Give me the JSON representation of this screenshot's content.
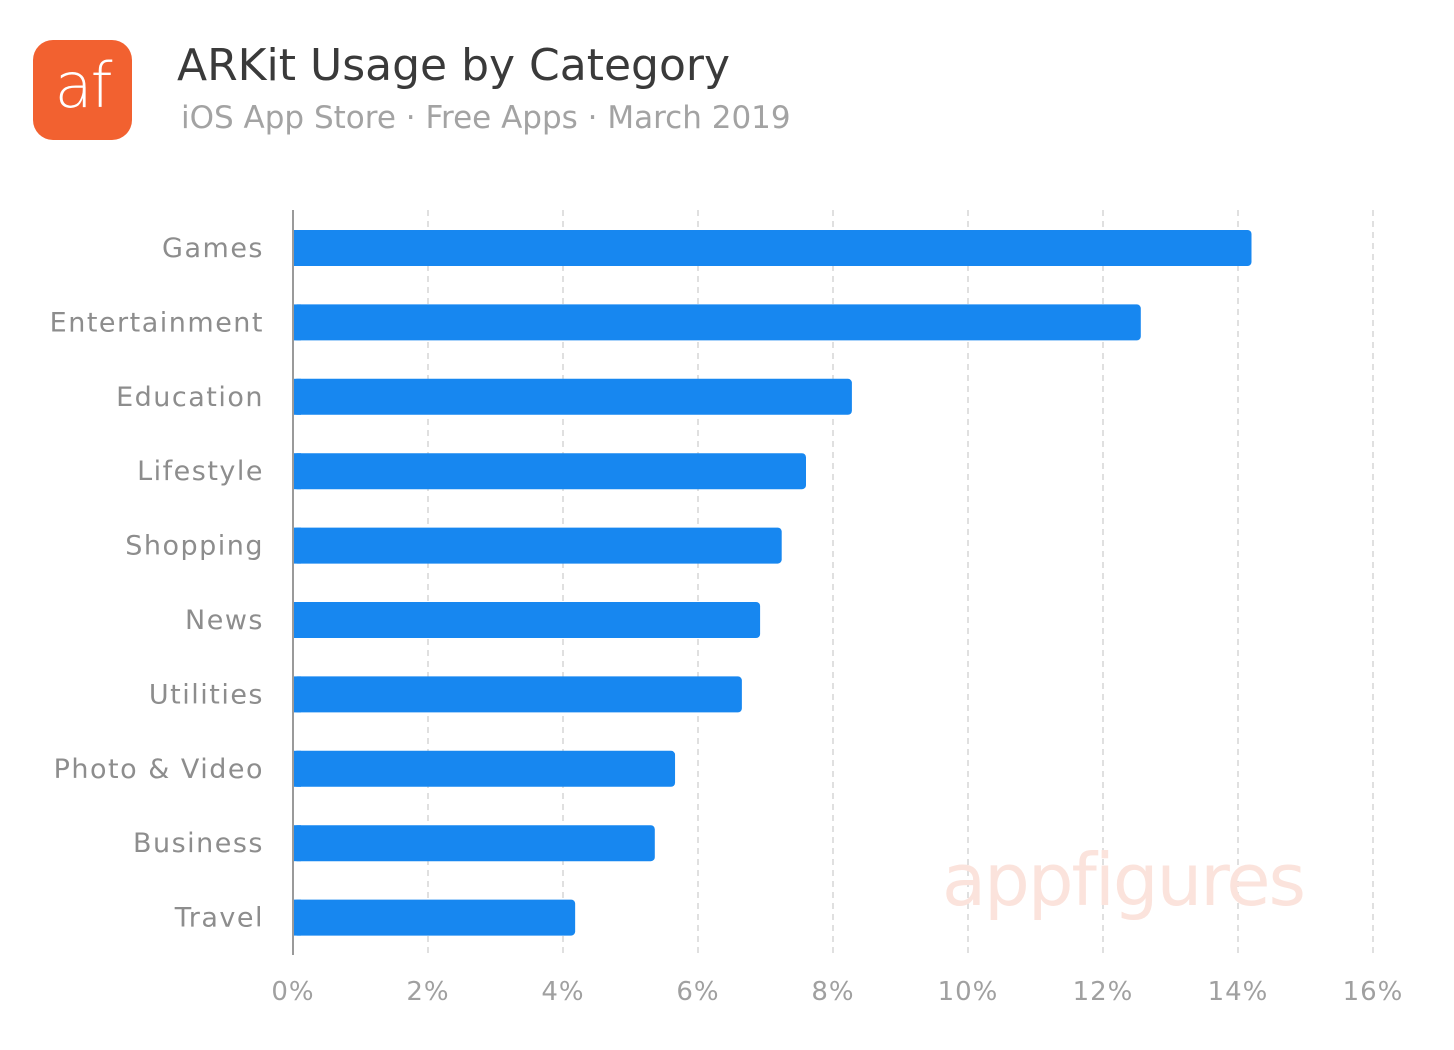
{
  "header": {
    "logo_text": "af",
    "title": "ARKit Usage by Category",
    "subtitle": "iOS App Store · Free Apps · March 2019"
  },
  "watermark": "appfigures",
  "colors": {
    "bar": "#1787f0",
    "logo_bg": "#f26130",
    "grid": "#d6d6d6",
    "axis": "#9a9a9a"
  },
  "chart_data": {
    "type": "bar",
    "orientation": "horizontal",
    "categories": [
      "Games",
      "Entertainment",
      "Education",
      "Lifestyle",
      "Shopping",
      "News",
      "Utilities",
      "Photo & Video",
      "Business",
      "Travel"
    ],
    "values": [
      14.2,
      12.56,
      8.28,
      7.6,
      7.24,
      6.92,
      6.65,
      5.66,
      5.36,
      4.18
    ],
    "xlim": [
      0,
      16
    ],
    "xticks": [
      "0%",
      "2%",
      "4%",
      "6%",
      "8%",
      "10%",
      "12%",
      "14%",
      "16%"
    ],
    "grid": "vertical dashed",
    "legend": "none"
  }
}
